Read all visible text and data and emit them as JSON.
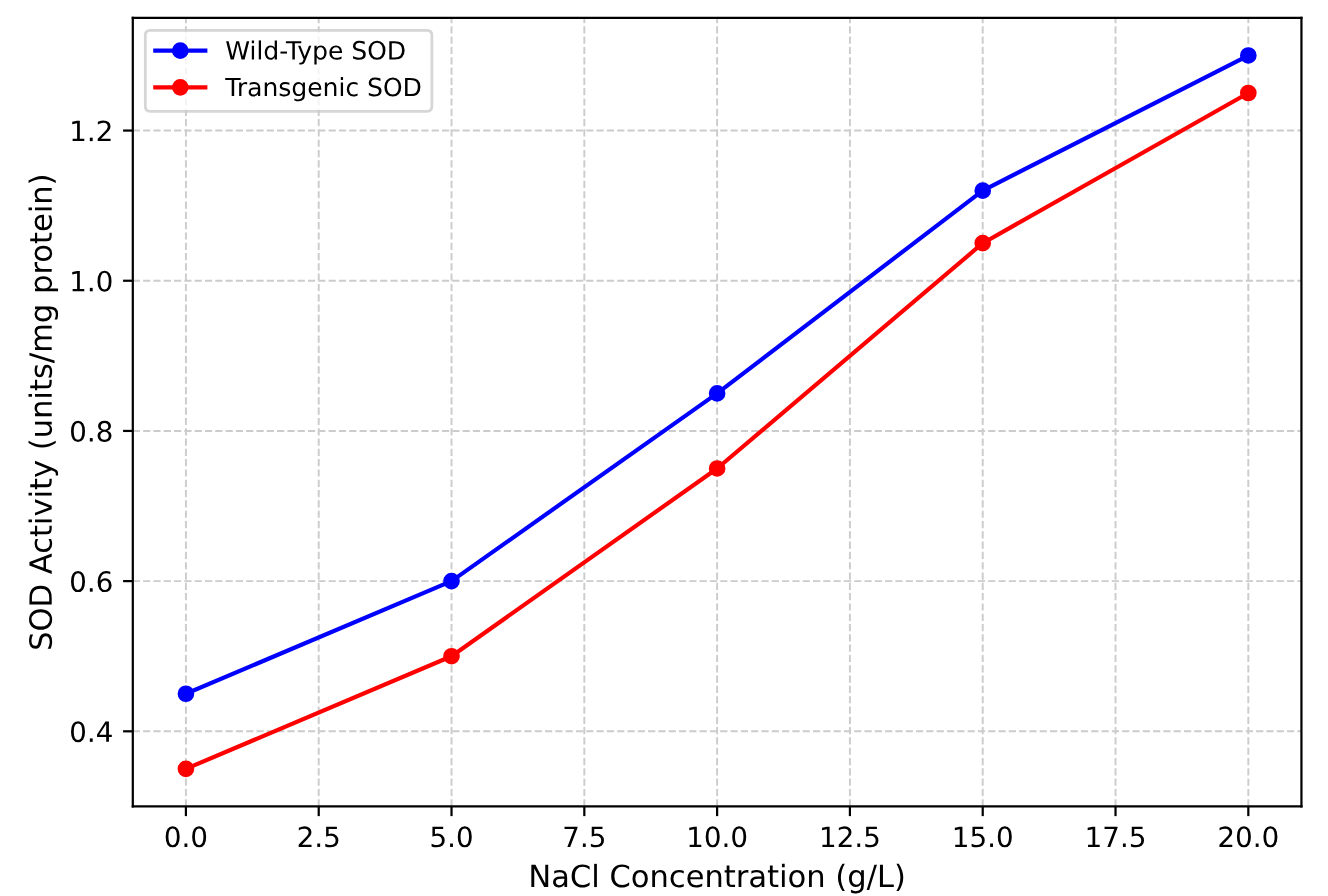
{
  "chart_data": {
    "type": "line",
    "xlabel": "NaCl Concentration (g/L)",
    "ylabel": "SOD Activity (units/mg protein)",
    "x": [
      0,
      5,
      10,
      15,
      20
    ],
    "series": [
      {
        "name": "Wild-Type SOD",
        "color": "#0000ff",
        "values": [
          0.45,
          0.6,
          0.85,
          1.12,
          1.3
        ]
      },
      {
        "name": "Transgenic SOD",
        "color": "#ff0000",
        "values": [
          0.35,
          0.5,
          0.75,
          1.05,
          1.25
        ]
      }
    ],
    "xlim": [
      -1,
      21
    ],
    "xticks": [
      {
        "value": 0,
        "label": "0.0"
      },
      {
        "value": 2.5,
        "label": "2.5"
      },
      {
        "value": 5,
        "label": "5.0"
      },
      {
        "value": 7.5,
        "label": "7.5"
      },
      {
        "value": 10,
        "label": "10.0"
      },
      {
        "value": 12.5,
        "label": "12.5"
      },
      {
        "value": 15,
        "label": "15.0"
      },
      {
        "value": 17.5,
        "label": "17.5"
      },
      {
        "value": 20,
        "label": "20.0"
      }
    ],
    "ylim": [
      0.3,
      1.35
    ],
    "yticks": [
      0.4,
      0.6,
      0.8,
      {
        "value": 1.0,
        "label": "1.0"
      },
      1.2
    ],
    "grid": true,
    "legend": "top left",
    "marker": "circle",
    "line_style": "solid"
  }
}
